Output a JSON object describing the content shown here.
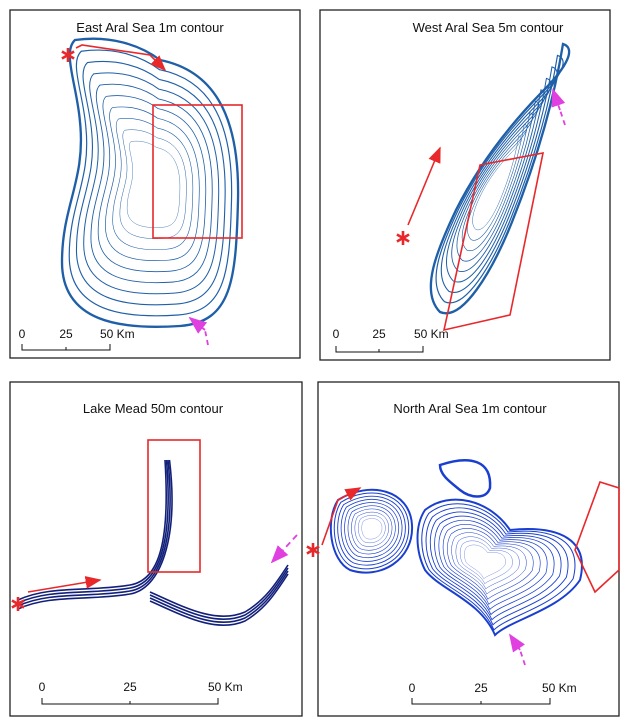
{
  "panels": [
    {
      "title": "East Aral Sea 1m contour",
      "scale": [
        "0",
        "25",
        "50 Km"
      ]
    },
    {
      "title": "West Aral Sea 5m contour",
      "scale": [
        "0",
        "25",
        "50 Km"
      ]
    },
    {
      "title": "Lake Mead 50m contour",
      "scale": [
        "0",
        "25",
        "50 Km"
      ]
    },
    {
      "title": "North Aral Sea 1m contour",
      "scale": [
        "0",
        "25",
        "50 Km"
      ]
    }
  ]
}
